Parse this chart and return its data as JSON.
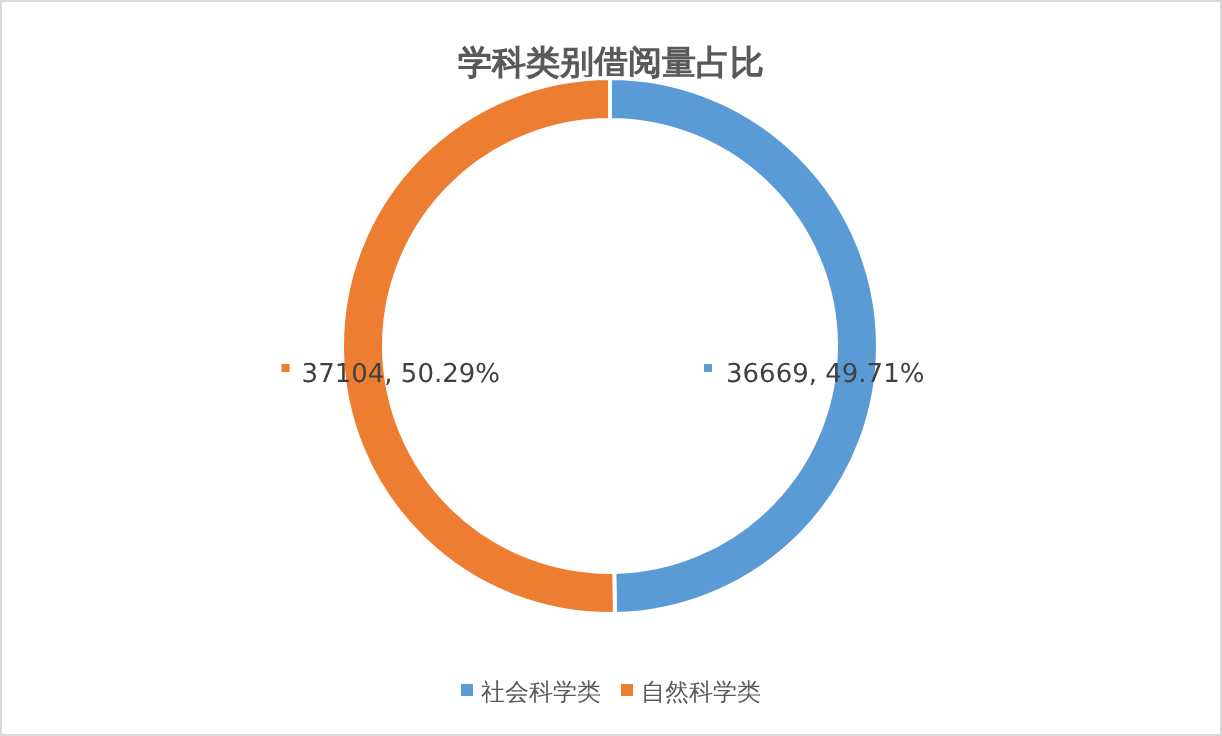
{
  "chart_data": {
    "type": "donut",
    "title": "学科类别借阅量占比",
    "categories": [
      "社会科学类",
      "自然科学类"
    ],
    "values": [
      36669,
      37104
    ],
    "value_labels": [
      "36669, 49.71%",
      "37104, 50.29%"
    ],
    "colors": [
      "#5b9bd5",
      "#ed7d31"
    ],
    "legend": "bottom"
  }
}
